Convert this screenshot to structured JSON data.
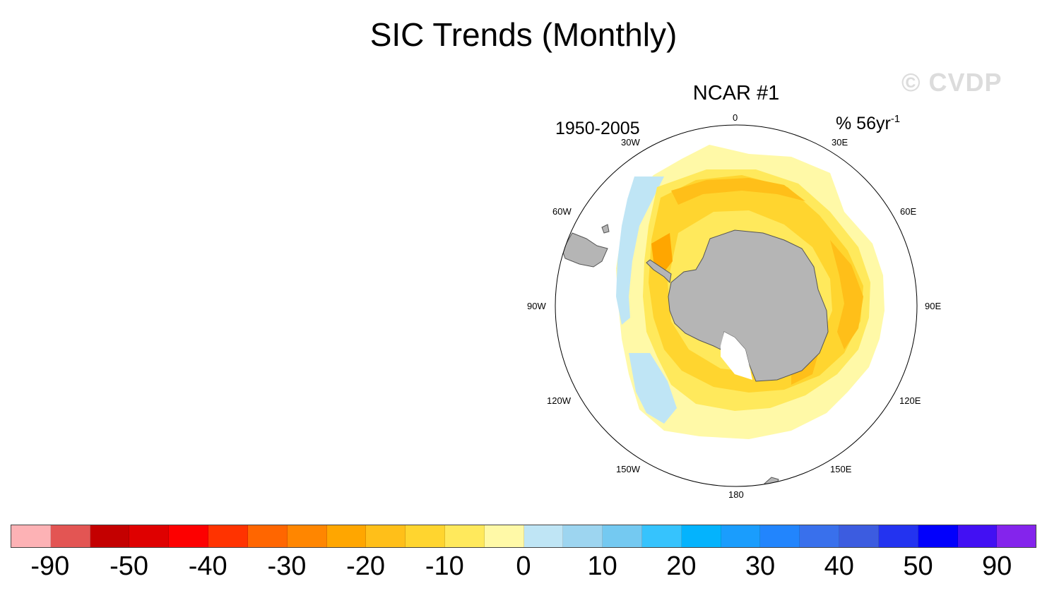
{
  "title": "SIC Trends (Monthly)",
  "watermark": "© CVDP",
  "panel": {
    "title": "NCAR #1",
    "period": "1950-2005",
    "units_main": "% 56yr",
    "units_sup": "-1"
  },
  "longitude_labels": {
    "0": "0",
    "30E": "30E",
    "60E": "60E",
    "90E": "90E",
    "120E": "120E",
    "150E": "150E",
    "180": "180",
    "150W": "150W",
    "120W": "120W",
    "90W": "90W",
    "60W": "60W",
    "30W": "30W"
  },
  "colorbar": {
    "colors": [
      "#fdb2b5",
      "#e35553",
      "#c40000",
      "#df0000",
      "#fd0000",
      "#ff3300",
      "#ff6600",
      "#ff8600",
      "#ffa600",
      "#ffbf19",
      "#ffd52f",
      "#ffe95c",
      "#fff9a7",
      "#bfe5f5",
      "#9dd5f0",
      "#74c9f1",
      "#36c3fd",
      "#04b3fd",
      "#1a9dfd",
      "#2285fd",
      "#3970ec",
      "#3c5ce0",
      "#2333f0",
      "#0200fc",
      "#4210f3",
      "#8424ec"
    ],
    "labels": [
      "-90",
      "-50",
      "-40",
      "-30",
      "-20",
      "-10",
      "0",
      "10",
      "20",
      "30",
      "40",
      "50",
      "90"
    ]
  },
  "map_colors": {
    "land": "#b5b5b5",
    "land_outline": "#555555",
    "light_yellow": "#fff9a7",
    "yellow": "#ffe95c",
    "gold": "#ffd52f",
    "amber": "#ffbf19",
    "orange": "#ffa600",
    "light_blue": "#bfe5f5"
  }
}
